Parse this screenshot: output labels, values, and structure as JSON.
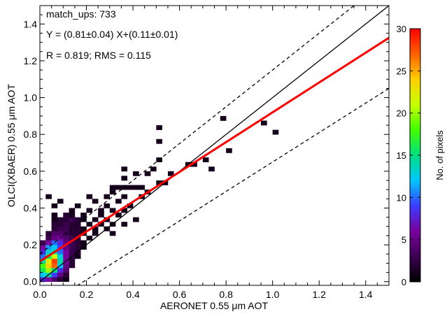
{
  "chart_data": {
    "type": "heatmap",
    "xlabel": "AERONET 0.55 μm AOT",
    "ylabel": "OLCI(XBAER) 0.55  μm AOT",
    "xlim": [
      0,
      1.5
    ],
    "ylim": [
      -0.02,
      1.5
    ],
    "xticks": [
      {
        "value": 0.0,
        "label": "0.0"
      },
      {
        "value": 0.2,
        "label": "0.2"
      },
      {
        "value": 0.4,
        "label": "0.4"
      },
      {
        "value": 0.6,
        "label": "0.6"
      },
      {
        "value": 0.8,
        "label": "0.8"
      },
      {
        "value": 1.0,
        "label": "1.0"
      },
      {
        "value": 1.2,
        "label": "1.2"
      },
      {
        "value": 1.4,
        "label": "1.4"
      }
    ],
    "yticks": [
      {
        "value": 0.0,
        "label": "0.0"
      },
      {
        "value": 0.2,
        "label": "0.2"
      },
      {
        "value": 0.4,
        "label": "0.4"
      },
      {
        "value": 0.6,
        "label": "0.6"
      },
      {
        "value": 0.8,
        "label": "0.8"
      },
      {
        "value": 1.0,
        "label": "1.0"
      },
      {
        "value": 1.2,
        "label": "1.2"
      },
      {
        "value": 1.4,
        "label": "1.4"
      }
    ],
    "annotations": [
      "match_ups: 733",
      "Y = (0.81±0.04) X+(0.11±0.01)",
      "R = 0.819; RMS = 0.115"
    ],
    "bin_size": 0.025,
    "cells": [
      {
        "x": 0.0,
        "y": 0.0,
        "count": 8
      },
      {
        "x": 0.025,
        "y": 0.0,
        "count": 6
      },
      {
        "x": 0.05,
        "y": 0.0,
        "count": 4
      },
      {
        "x": 0.075,
        "y": 0.0,
        "count": 2
      },
      {
        "x": 0.1,
        "y": 0.0,
        "count": 1
      },
      {
        "x": 0.0,
        "y": 0.025,
        "count": 12
      },
      {
        "x": 0.025,
        "y": 0.025,
        "count": 14
      },
      {
        "x": 0.05,
        "y": 0.025,
        "count": 9
      },
      {
        "x": 0.075,
        "y": 0.025,
        "count": 5
      },
      {
        "x": 0.1,
        "y": 0.025,
        "count": 2
      },
      {
        "x": 0.0,
        "y": 0.05,
        "count": 16
      },
      {
        "x": 0.025,
        "y": 0.05,
        "count": 20
      },
      {
        "x": 0.05,
        "y": 0.05,
        "count": 15
      },
      {
        "x": 0.075,
        "y": 0.05,
        "count": 8
      },
      {
        "x": 0.1,
        "y": 0.05,
        "count": 4
      },
      {
        "x": 0.0,
        "y": 0.075,
        "count": 18
      },
      {
        "x": 0.025,
        "y": 0.075,
        "count": 24
      },
      {
        "x": 0.05,
        "y": 0.075,
        "count": 27
      },
      {
        "x": 0.075,
        "y": 0.075,
        "count": 12
      },
      {
        "x": 0.1,
        "y": 0.075,
        "count": 5
      },
      {
        "x": 0.125,
        "y": 0.075,
        "count": 2
      },
      {
        "x": 0.0,
        "y": 0.1,
        "count": 14
      },
      {
        "x": 0.025,
        "y": 0.1,
        "count": 22
      },
      {
        "x": 0.05,
        "y": 0.1,
        "count": 28
      },
      {
        "x": 0.075,
        "y": 0.1,
        "count": 14
      },
      {
        "x": 0.1,
        "y": 0.1,
        "count": 6
      },
      {
        "x": 0.125,
        "y": 0.1,
        "count": 2
      },
      {
        "x": 0.0,
        "y": 0.125,
        "count": 10
      },
      {
        "x": 0.025,
        "y": 0.125,
        "count": 16
      },
      {
        "x": 0.05,
        "y": 0.125,
        "count": 21
      },
      {
        "x": 0.075,
        "y": 0.125,
        "count": 13
      },
      {
        "x": 0.1,
        "y": 0.125,
        "count": 6
      },
      {
        "x": 0.125,
        "y": 0.125,
        "count": 3
      },
      {
        "x": 0.15,
        "y": 0.125,
        "count": 1
      },
      {
        "x": 0.0,
        "y": 0.15,
        "count": 8
      },
      {
        "x": 0.025,
        "y": 0.15,
        "count": 13
      },
      {
        "x": 0.05,
        "y": 0.15,
        "count": 14
      },
      {
        "x": 0.075,
        "y": 0.15,
        "count": 10
      },
      {
        "x": 0.1,
        "y": 0.15,
        "count": 6
      },
      {
        "x": 0.125,
        "y": 0.15,
        "count": 3
      },
      {
        "x": 0.15,
        "y": 0.15,
        "count": 2
      },
      {
        "x": 0.0,
        "y": 0.175,
        "count": 6
      },
      {
        "x": 0.025,
        "y": 0.175,
        "count": 11
      },
      {
        "x": 0.05,
        "y": 0.175,
        "count": 12
      },
      {
        "x": 0.075,
        "y": 0.175,
        "count": 9
      },
      {
        "x": 0.1,
        "y": 0.175,
        "count": 5
      },
      {
        "x": 0.125,
        "y": 0.175,
        "count": 3
      },
      {
        "x": 0.15,
        "y": 0.175,
        "count": 2
      },
      {
        "x": 0.175,
        "y": 0.175,
        "count": 1
      },
      {
        "x": 0.0,
        "y": 0.2,
        "count": 3
      },
      {
        "x": 0.025,
        "y": 0.2,
        "count": 6
      },
      {
        "x": 0.05,
        "y": 0.2,
        "count": 10
      },
      {
        "x": 0.075,
        "y": 0.2,
        "count": 8
      },
      {
        "x": 0.1,
        "y": 0.2,
        "count": 5
      },
      {
        "x": 0.125,
        "y": 0.2,
        "count": 3
      },
      {
        "x": 0.15,
        "y": 0.2,
        "count": 2
      },
      {
        "x": 0.175,
        "y": 0.2,
        "count": 1
      },
      {
        "x": 0.025,
        "y": 0.225,
        "count": 3
      },
      {
        "x": 0.05,
        "y": 0.225,
        "count": 5
      },
      {
        "x": 0.075,
        "y": 0.225,
        "count": 6
      },
      {
        "x": 0.1,
        "y": 0.225,
        "count": 4
      },
      {
        "x": 0.125,
        "y": 0.225,
        "count": 3
      },
      {
        "x": 0.15,
        "y": 0.225,
        "count": 2
      },
      {
        "x": 0.2,
        "y": 0.225,
        "count": 1
      },
      {
        "x": 0.025,
        "y": 0.25,
        "count": 2
      },
      {
        "x": 0.05,
        "y": 0.25,
        "count": 4
      },
      {
        "x": 0.075,
        "y": 0.25,
        "count": 4
      },
      {
        "x": 0.1,
        "y": 0.25,
        "count": 3
      },
      {
        "x": 0.125,
        "y": 0.25,
        "count": 2
      },
      {
        "x": 0.15,
        "y": 0.25,
        "count": 2
      },
      {
        "x": 0.175,
        "y": 0.25,
        "count": 1
      },
      {
        "x": 0.225,
        "y": 0.25,
        "count": 1
      },
      {
        "x": 0.3,
        "y": 0.25,
        "count": 1
      },
      {
        "x": 0.05,
        "y": 0.275,
        "count": 2
      },
      {
        "x": 0.075,
        "y": 0.275,
        "count": 3
      },
      {
        "x": 0.1,
        "y": 0.275,
        "count": 3
      },
      {
        "x": 0.125,
        "y": 0.275,
        "count": 2
      },
      {
        "x": 0.15,
        "y": 0.275,
        "count": 2
      },
      {
        "x": 0.175,
        "y": 0.275,
        "count": 1
      },
      {
        "x": 0.225,
        "y": 0.275,
        "count": 1
      },
      {
        "x": 0.275,
        "y": 0.275,
        "count": 1
      },
      {
        "x": 0.05,
        "y": 0.3,
        "count": 2
      },
      {
        "x": 0.075,
        "y": 0.3,
        "count": 2
      },
      {
        "x": 0.1,
        "y": 0.3,
        "count": 3
      },
      {
        "x": 0.125,
        "y": 0.3,
        "count": 2
      },
      {
        "x": 0.15,
        "y": 0.3,
        "count": 2
      },
      {
        "x": 0.2,
        "y": 0.3,
        "count": 1
      },
      {
        "x": 0.25,
        "y": 0.3,
        "count": 1
      },
      {
        "x": 0.3,
        "y": 0.3,
        "count": 1
      },
      {
        "x": 0.35,
        "y": 0.3,
        "count": 1
      },
      {
        "x": 0.05,
        "y": 0.325,
        "count": 1
      },
      {
        "x": 0.075,
        "y": 0.325,
        "count": 2
      },
      {
        "x": 0.1,
        "y": 0.325,
        "count": 2
      },
      {
        "x": 0.125,
        "y": 0.325,
        "count": 3
      },
      {
        "x": 0.15,
        "y": 0.325,
        "count": 2
      },
      {
        "x": 0.175,
        "y": 0.325,
        "count": 1
      },
      {
        "x": 0.225,
        "y": 0.325,
        "count": 1
      },
      {
        "x": 0.275,
        "y": 0.325,
        "count": 1
      },
      {
        "x": 0.4,
        "y": 0.325,
        "count": 1
      },
      {
        "x": 0.05,
        "y": 0.35,
        "count": 1
      },
      {
        "x": 0.1,
        "y": 0.35,
        "count": 2
      },
      {
        "x": 0.125,
        "y": 0.35,
        "count": 1
      },
      {
        "x": 0.175,
        "y": 0.35,
        "count": 1
      },
      {
        "x": 0.25,
        "y": 0.35,
        "count": 1
      },
      {
        "x": 0.325,
        "y": 0.35,
        "count": 1
      },
      {
        "x": 0.125,
        "y": 0.375,
        "count": 1
      },
      {
        "x": 0.2,
        "y": 0.375,
        "count": 1
      },
      {
        "x": 0.25,
        "y": 0.375,
        "count": 1
      },
      {
        "x": 0.3,
        "y": 0.375,
        "count": 1
      },
      {
        "x": 0.35,
        "y": 0.375,
        "count": 1
      },
      {
        "x": 0.05,
        "y": 0.4,
        "count": 1
      },
      {
        "x": 0.15,
        "y": 0.4,
        "count": 1
      },
      {
        "x": 0.275,
        "y": 0.4,
        "count": 1
      },
      {
        "x": 0.375,
        "y": 0.4,
        "count": 1
      },
      {
        "x": 0.075,
        "y": 0.425,
        "count": 1
      },
      {
        "x": 0.225,
        "y": 0.425,
        "count": 1
      },
      {
        "x": 0.325,
        "y": 0.425,
        "count": 1
      },
      {
        "x": 0.025,
        "y": 0.45,
        "count": 1
      },
      {
        "x": 0.2,
        "y": 0.45,
        "count": 1
      },
      {
        "x": 0.275,
        "y": 0.45,
        "count": 1
      },
      {
        "x": 0.35,
        "y": 0.45,
        "count": 1
      },
      {
        "x": 0.425,
        "y": 0.45,
        "count": 1
      },
      {
        "x": 0.3,
        "y": 0.475,
        "count": 1
      },
      {
        "x": 0.45,
        "y": 0.475,
        "count": 1
      },
      {
        "x": 0.3,
        "y": 0.5,
        "count": 1
      },
      {
        "x": 0.325,
        "y": 0.5,
        "count": 1
      },
      {
        "x": 0.35,
        "y": 0.5,
        "count": 1
      },
      {
        "x": 0.375,
        "y": 0.5,
        "count": 1
      },
      {
        "x": 0.4,
        "y": 0.5,
        "count": 1
      },
      {
        "x": 0.425,
        "y": 0.5,
        "count": 1
      },
      {
        "x": 0.5,
        "y": 0.525,
        "count": 1
      },
      {
        "x": 0.525,
        "y": 0.525,
        "count": 1
      },
      {
        "x": 0.35,
        "y": 0.55,
        "count": 1
      },
      {
        "x": 0.4,
        "y": 0.575,
        "count": 1
      },
      {
        "x": 0.45,
        "y": 0.575,
        "count": 1
      },
      {
        "x": 0.475,
        "y": 0.6,
        "count": 1
      },
      {
        "x": 0.35,
        "y": 0.6,
        "count": 1
      },
      {
        "x": 0.625,
        "y": 0.625,
        "count": 1
      },
      {
        "x": 0.65,
        "y": 0.625,
        "count": 1
      },
      {
        "x": 0.725,
        "y": 0.6,
        "count": 1
      },
      {
        "x": 0.7,
        "y": 0.65,
        "count": 1
      },
      {
        "x": 0.55,
        "y": 0.575,
        "count": 1
      },
      {
        "x": 0.5,
        "y": 0.65,
        "count": 1
      },
      {
        "x": 0.5,
        "y": 0.75,
        "count": 1
      },
      {
        "x": 0.8,
        "y": 0.7,
        "count": 1
      },
      {
        "x": 0.95,
        "y": 0.85,
        "count": 1
      },
      {
        "x": 1.0,
        "y": 0.8,
        "count": 1
      },
      {
        "x": 0.5,
        "y": 0.825,
        "count": 1
      },
      {
        "x": 0.775,
        "y": 0.875,
        "count": 1
      }
    ],
    "reference_lines": [
      {
        "kind": "1:1",
        "slope": 1.0,
        "intercept": 0.0,
        "color": "#000000",
        "style": "solid"
      },
      {
        "kind": "upper",
        "slope": 1.0,
        "intercept": 0.15,
        "color": "#000000",
        "style": "dashed"
      },
      {
        "kind": "lower",
        "slope": 0.8,
        "intercept": -0.15,
        "color": "#000000",
        "style": "dashed"
      }
    ],
    "fit_line": {
      "slope": 0.81,
      "intercept": 0.11,
      "color": "#ff0000"
    },
    "colorbar": {
      "label": "No. of pixels",
      "min": 0,
      "max": 30,
      "ticks": [
        {
          "value": 0,
          "label": "0"
        },
        {
          "value": 5,
          "label": "5"
        },
        {
          "value": 10,
          "label": "10"
        },
        {
          "value": 15,
          "label": "15"
        },
        {
          "value": 20,
          "label": "20"
        },
        {
          "value": 25,
          "label": "25"
        },
        {
          "value": 30,
          "label": "30"
        }
      ],
      "colors": [
        "#000000",
        "#3c0050",
        "#7a00a0",
        "#3c3cff",
        "#00c8ff",
        "#00e080",
        "#40ff00",
        "#c8ff00",
        "#ffd000",
        "#ff6000",
        "#ff0000"
      ]
    }
  }
}
